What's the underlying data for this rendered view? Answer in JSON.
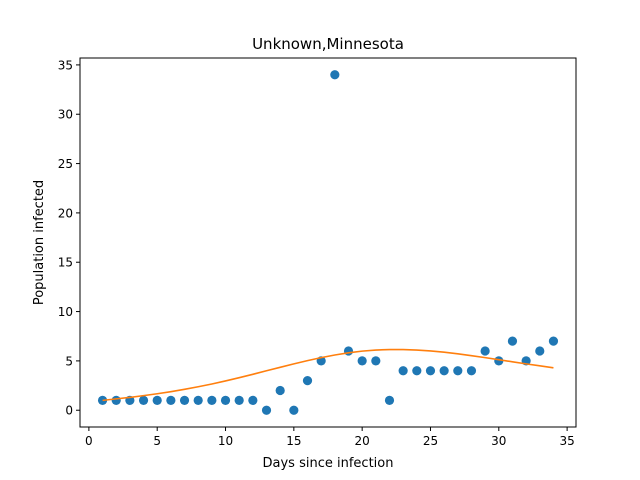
{
  "chart_data": {
    "type": "scatter",
    "title": "Unknown,Minnesota",
    "xlabel": "Days since infection",
    "ylabel": "Population infected",
    "xlim": [
      -0.65,
      35.65
    ],
    "ylim": [
      -1.7,
      35.7
    ],
    "xticks": [
      0,
      5,
      10,
      15,
      20,
      25,
      30,
      35
    ],
    "yticks": [
      0,
      5,
      10,
      15,
      20,
      25,
      30,
      35
    ],
    "grid": false,
    "series": [
      {
        "kind": "scatter",
        "color": "#1f77b4",
        "x": [
          1,
          2,
          3,
          4,
          5,
          6,
          7,
          8,
          9,
          10,
          11,
          12,
          13,
          14,
          15,
          16,
          17,
          18,
          19,
          20,
          21,
          22,
          23,
          24,
          25,
          26,
          27,
          28,
          29,
          30,
          31,
          32,
          33,
          34
        ],
        "y": [
          1,
          1,
          1,
          1,
          1,
          1,
          1,
          1,
          1,
          1,
          1,
          1,
          0,
          2,
          0,
          3,
          5,
          34,
          6,
          5,
          5,
          1,
          4,
          4,
          4,
          4,
          4,
          4,
          6,
          5,
          7,
          5,
          6,
          7
        ]
      },
      {
        "kind": "line",
        "color": "#ff7f0e",
        "x": [
          1,
          2,
          3,
          4,
          5,
          6,
          7,
          8,
          9,
          10,
          11,
          12,
          13,
          14,
          15,
          16,
          17,
          18,
          19,
          20,
          21,
          22,
          23,
          24,
          25,
          26,
          27,
          28,
          29,
          30,
          31,
          32,
          33,
          34
        ],
        "y": [
          1.0,
          1.15,
          1.3,
          1.48,
          1.67,
          1.88,
          2.12,
          2.38,
          2.66,
          2.97,
          3.3,
          3.64,
          4.0,
          4.35,
          4.7,
          5.03,
          5.33,
          5.6,
          5.82,
          5.99,
          6.1,
          6.15,
          6.15,
          6.1,
          6.01,
          5.88,
          5.72,
          5.53,
          5.33,
          5.12,
          4.91,
          4.7,
          4.5,
          4.3
        ]
      }
    ]
  }
}
